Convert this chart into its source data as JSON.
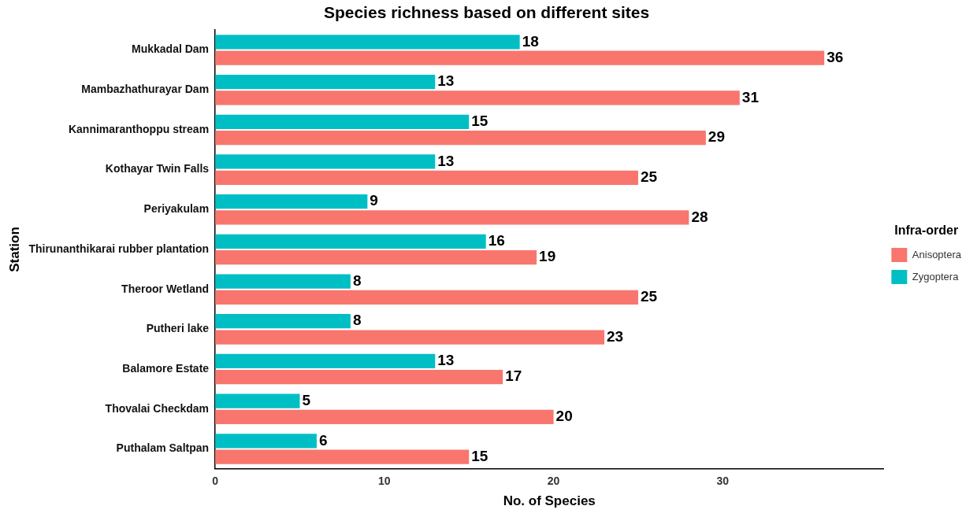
{
  "chart_data": {
    "type": "bar",
    "orientation": "horizontal",
    "title": "Species richness based on different sites",
    "xlabel": "No. of Species",
    "ylabel": "Station",
    "legend_title": "Infra-order",
    "categories": [
      "Mukkadal Dam",
      "Mambazhathurayar Dam",
      "Kannimaranthoppu stream",
      "Kothayar Twin Falls",
      "Periyakulam",
      "Thirunanthikarai rubber plantation",
      "Theroor Wetland",
      "Putheri lake",
      "Balamore Estate",
      "Thovalai Checkdam",
      "Puthalam Saltpan"
    ],
    "series": [
      {
        "name": "Anisoptera",
        "color": "#f8766d",
        "values": [
          36,
          31,
          29,
          25,
          28,
          19,
          25,
          23,
          17,
          20,
          15
        ]
      },
      {
        "name": "Zygoptera",
        "color": "#00bfc4",
        "values": [
          18,
          13,
          15,
          13,
          9,
          16,
          8,
          8,
          13,
          5,
          6
        ]
      }
    ],
    "xlim": [
      0,
      39.5
    ],
    "xticks": [
      0,
      10,
      20,
      30
    ],
    "grid": false,
    "legend": "right",
    "data_labels": true
  }
}
